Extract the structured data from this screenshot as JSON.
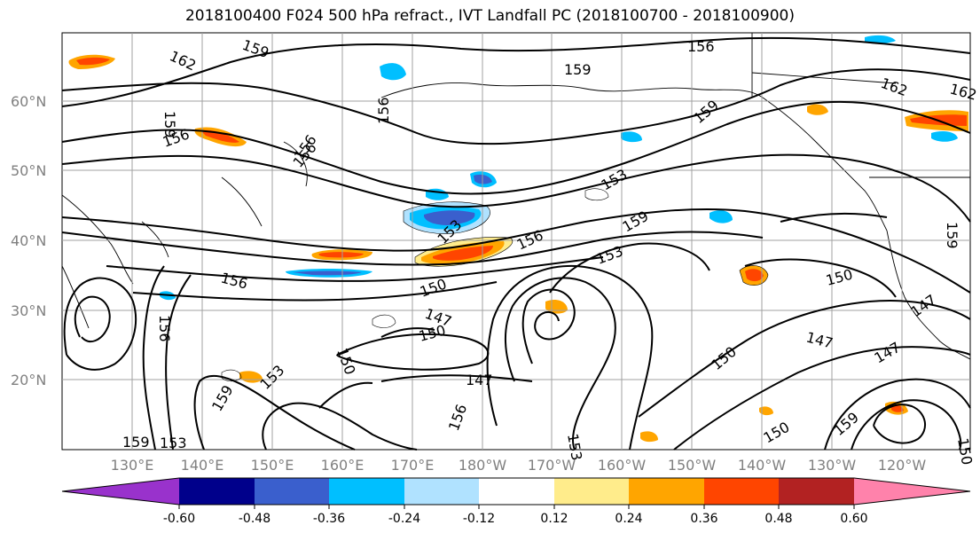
{
  "title": "2018100400 F024 500 hPa refract., IVT Landfall PC (2018100700 - 2018100900)",
  "lat_labels": [
    "60°N",
    "50°N",
    "40°N",
    "30°N",
    "20°N"
  ],
  "lon_labels": [
    "130°E",
    "140°E",
    "150°E",
    "160°E",
    "170°E",
    "180°W",
    "170°W",
    "160°W",
    "150°W",
    "140°W",
    "130°W",
    "120°W"
  ],
  "contour_labels": [
    "159",
    "162",
    "156",
    "159",
    "156",
    "162",
    "159",
    "156",
    "159",
    "156",
    "153",
    "159",
    "156",
    "150",
    "153",
    "147",
    "150",
    "147",
    "150",
    "147",
    "147",
    "150",
    "153",
    "156",
    "159",
    "153",
    "150",
    "159",
    "147",
    "153",
    "156",
    "159",
    "162",
    "150",
    "153",
    "159",
    "156",
    "156",
    "150"
  ],
  "colorbar": {
    "tick_labels": [
      "-0.60",
      "-0.48",
      "-0.36",
      "-0.24",
      "-0.12",
      "0.12",
      "0.24",
      "0.36",
      "0.48",
      "0.60"
    ],
    "colors": [
      "#9932cc",
      "#00008b",
      "#3a5fcd",
      "#00bfff",
      "#b0e2ff",
      "#ffffff",
      "#ffec8b",
      "#ffa500",
      "#ff4500",
      "#b22222",
      "#ff82ab"
    ]
  },
  "colors": {
    "neg_strong": "#3a5fcd",
    "neg_mid": "#00bfff",
    "neg_weak": "#b0e2ff",
    "pos_weak": "#ffec8b",
    "pos_mid": "#ffa500",
    "pos_strong": "#ff4500"
  }
}
